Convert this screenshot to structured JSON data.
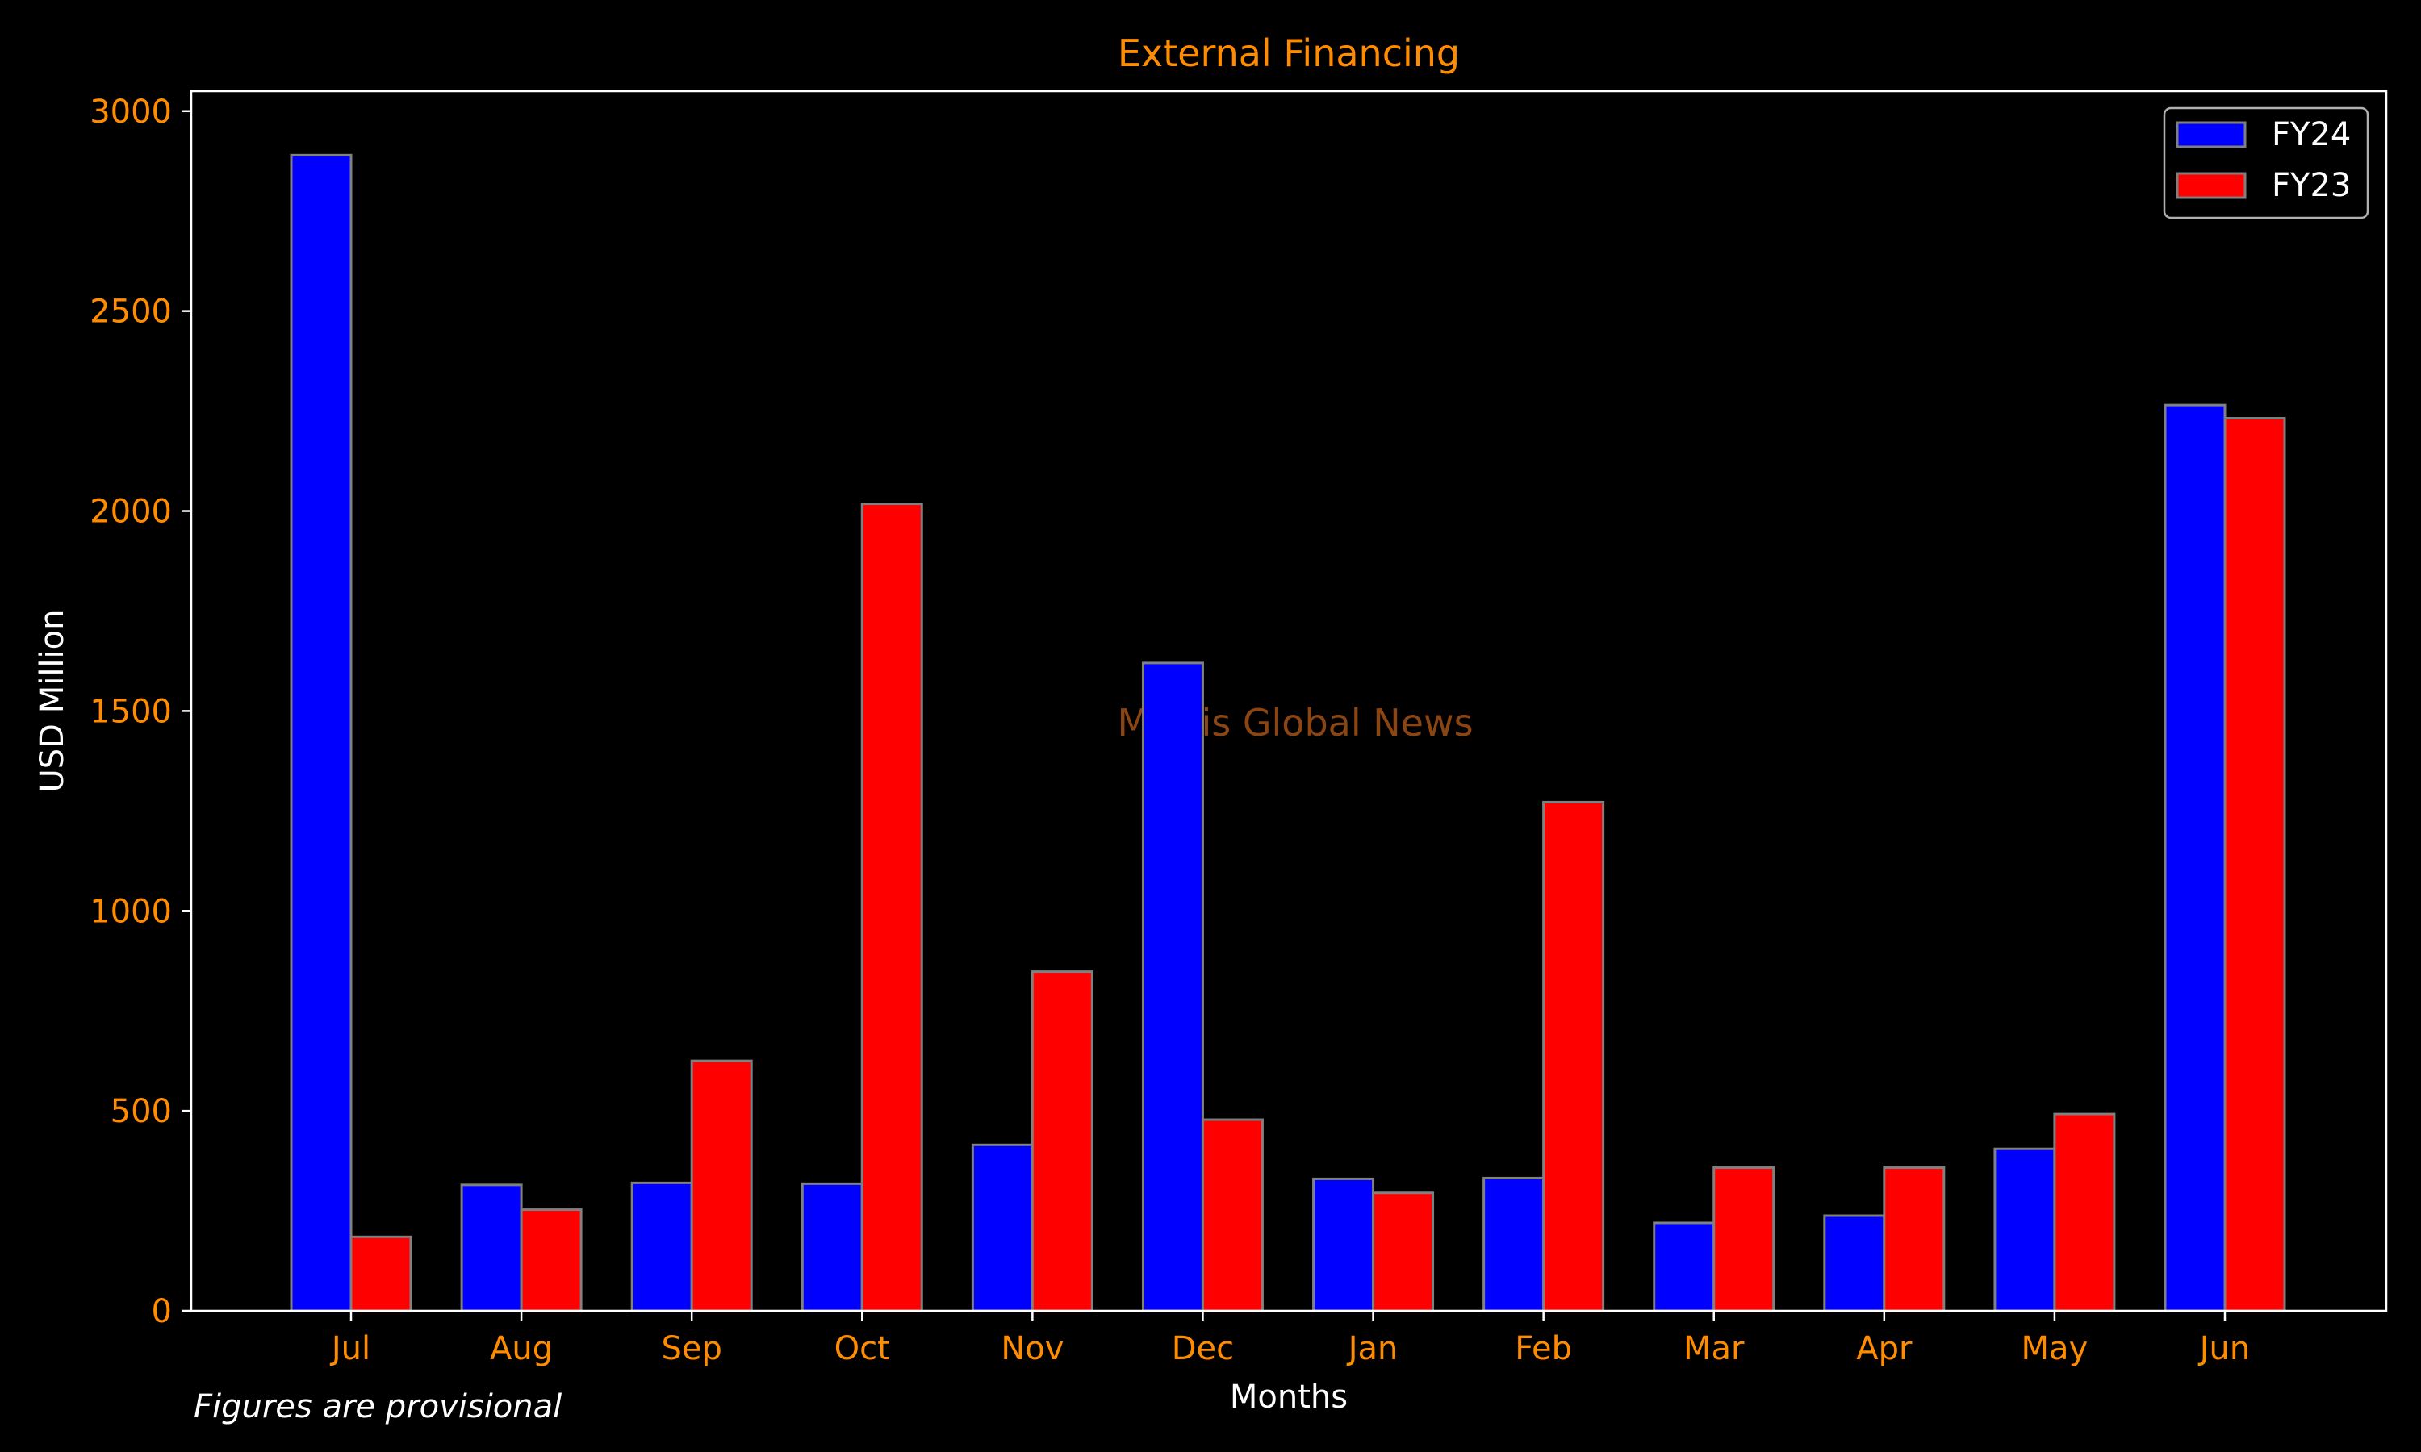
{
  "chart_data": {
    "type": "bar",
    "title": "External Financing",
    "xlabel": "Months",
    "ylabel": "USD Million",
    "categories": [
      "Jul",
      "Aug",
      "Sep",
      "Oct",
      "Nov",
      "Dec",
      "Jan",
      "Feb",
      "Mar",
      "Apr",
      "May",
      "Jun"
    ],
    "series": [
      {
        "name": "FY24",
        "color": "#0000ff",
        "values": [
          2890,
          315,
          320,
          318,
          415,
          1620,
          330,
          332,
          220,
          238,
          405,
          2265
        ]
      },
      {
        "name": "FY23",
        "color": "#ff0000",
        "values": [
          185,
          253,
          625,
          2018,
          848,
          478,
          295,
          1272,
          358,
          358,
          492,
          2232
        ]
      }
    ],
    "ylim": [
      0,
      3050
    ],
    "yticks": [
      0,
      500,
      1000,
      1500,
      2000,
      2500,
      3000
    ],
    "grid": false,
    "legend_position": "top-right",
    "footnote": "Figures are provisional",
    "watermark": "Mettis Global News",
    "colors": {
      "background": "#000000",
      "axis": "#ffffff",
      "tick_label": "#ff8c00",
      "title": "#ff8c00",
      "bar_edge": "#808080",
      "watermark": "#8b4513"
    }
  }
}
